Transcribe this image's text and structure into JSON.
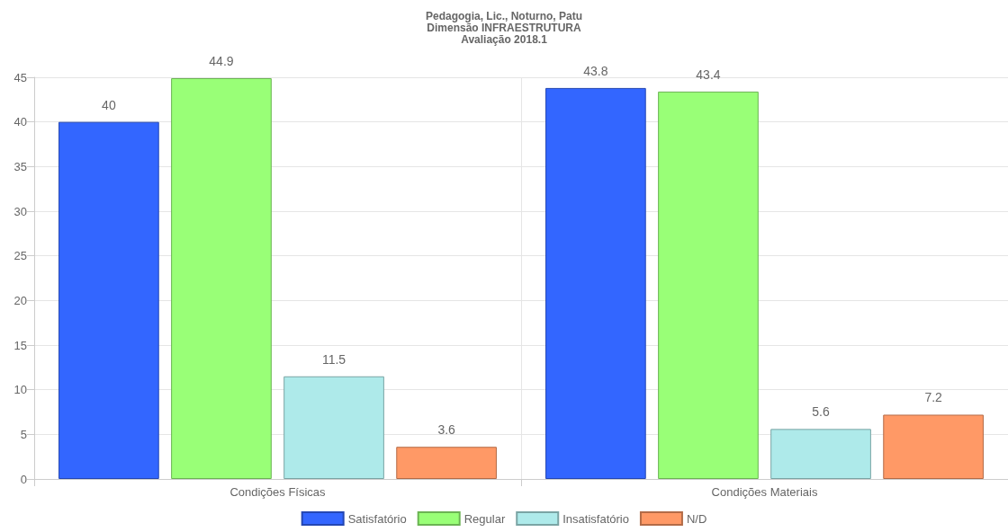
{
  "chart_data": {
    "type": "bar",
    "title": "Pedagogia, Lic., Noturno, Patu\nDimensão INFRAESTRUTURA\nAvaliação 2018.1",
    "categories": [
      "Condições Físicas",
      "Condições Materiais"
    ],
    "series": [
      {
        "name": "Satisfatório",
        "color": "#3366ff",
        "values": [
          40,
          43.8
        ]
      },
      {
        "name": "Regular",
        "color": "#99ff77",
        "values": [
          44.9,
          43.4
        ]
      },
      {
        "name": "Insatisfatório",
        "color": "#aeeaea",
        "values": [
          11.5,
          5.6
        ]
      },
      {
        "name": "N/D",
        "color": "#ff9966",
        "values": [
          3.6,
          7.2
        ]
      }
    ],
    "ylim": [
      0,
      45
    ],
    "yticks": [
      0,
      5,
      10,
      15,
      20,
      25,
      30,
      35,
      40,
      45
    ],
    "grid": true,
    "legend": "bottom",
    "data_labels": true
  }
}
